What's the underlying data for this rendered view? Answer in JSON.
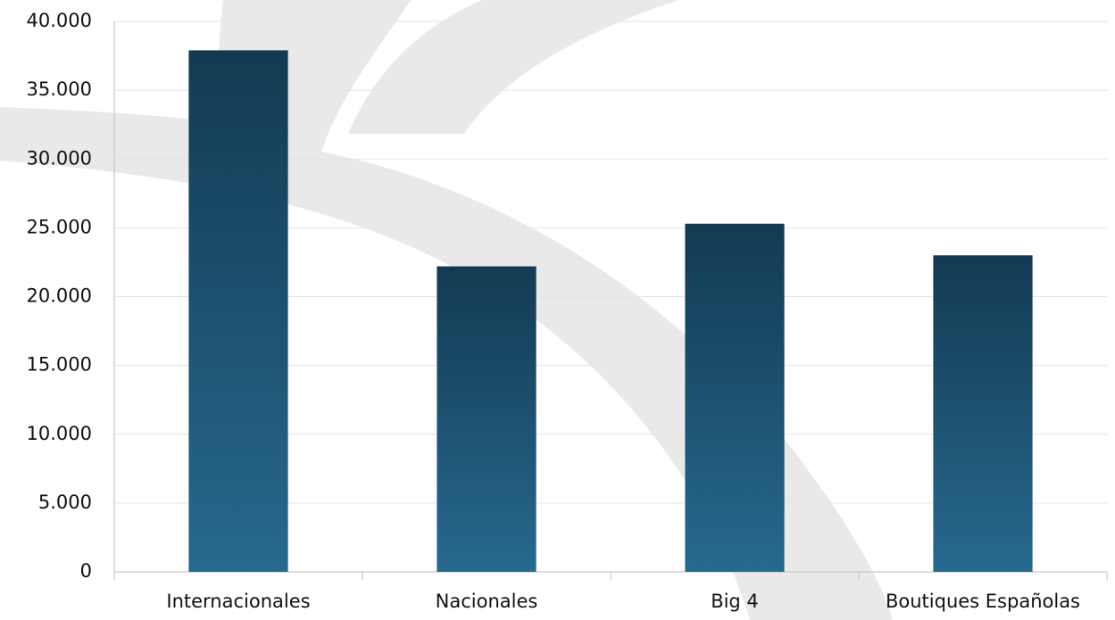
{
  "chart_data": {
    "type": "bar",
    "categories": [
      "Internacionales",
      "Nacionales",
      "Big 4",
      "Boutiques Españolas"
    ],
    "values": [
      37900,
      22200,
      25300,
      23000
    ],
    "gradient": [
      "#133a52",
      "#27698f"
    ],
    "ylim": [
      0,
      40000
    ],
    "yticks": [
      0,
      {
        "value": 5000,
        "label": "5.000"
      },
      {
        "value": 10000,
        "label": "10.000"
      },
      {
        "value": 15000,
        "label": "15.000"
      },
      {
        "value": 20000,
        "label": "20.000"
      },
      {
        "value": 25000,
        "label": "25.000"
      },
      {
        "value": 30000,
        "label": "30.000"
      },
      {
        "value": 35000,
        "label": "35.000"
      },
      {
        "value": 40000,
        "label": "40.000"
      }
    ],
    "grid": true
  }
}
